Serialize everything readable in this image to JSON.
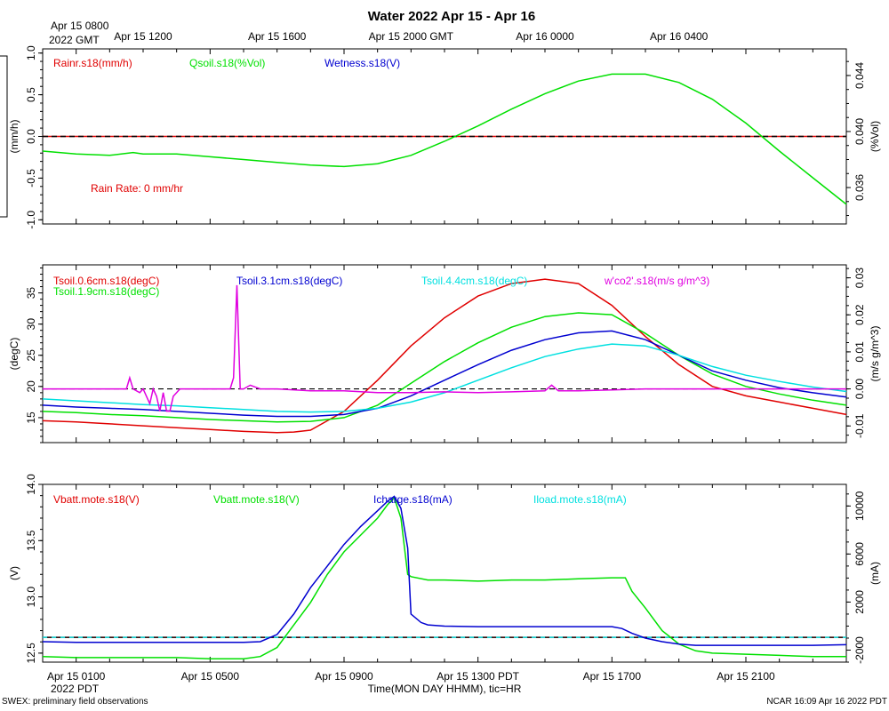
{
  "title": "Water 2022 Apr 15 - Apr 16",
  "top_axis": {
    "ticks": [
      {
        "x": 3,
        "label": "Apr 15 1200"
      },
      {
        "x": 7,
        "label": "Apr 15 1600"
      },
      {
        "x": 11,
        "label": "Apr 15 2000 GMT"
      },
      {
        "x": 15,
        "label": "Apr 16 0000"
      },
      {
        "x": 19,
        "label": "Apr 16 0400"
      }
    ],
    "start_label_1": "Apr 15 0800",
    "start_label_2": "2022 GMT"
  },
  "bottom_axis": {
    "ticks": [
      {
        "x": 1,
        "label": "Apr 15 0100"
      },
      {
        "x": 5,
        "label": "Apr 15 0500"
      },
      {
        "x": 9,
        "label": "Apr 15 0900"
      },
      {
        "x": 13,
        "label": "Apr 15 1300 PDT"
      },
      {
        "x": 17,
        "label": "Apr 15 1700"
      },
      {
        "x": 21,
        "label": "Apr 15 2100"
      }
    ],
    "year_label": "2022 PDT",
    "xlabel": "Time(MON DAY HHMM), tic=HR"
  },
  "footer": {
    "left": "SWEX: preliminary field observations",
    "right": "NCAR 16:09 Apr 16 2022 PDT"
  },
  "colors": {
    "red": "#e00000",
    "green": "#00e000",
    "blue": "#0000d0",
    "cyan": "#00e0e0",
    "magenta": "#e000e0"
  },
  "chart_data": [
    {
      "type": "line",
      "panel": "water",
      "ylabel_left": "(mm/h)",
      "ylabel_right": "(%Vol)",
      "ylim_left": [
        -1.05,
        1.05
      ],
      "yticks_left": [
        "1.0",
        "0.5",
        "0.0",
        "-0.5",
        "-1.0"
      ],
      "yticks_left_values": [
        1.0,
        0.5,
        0.0,
        -0.5,
        -1.0
      ],
      "ylim_right": [
        0.0334,
        0.0459
      ],
      "yticks_right": [
        "0.044",
        "0.040",
        "0.036"
      ],
      "yticks_right_values": [
        0.044,
        0.04,
        0.036
      ],
      "legend": [
        "Rainr.s18(mm/h)",
        "Qsoil.s18(%Vol)",
        "Wetness.s18(V)"
      ],
      "annotation": "Rain Rate: 0 mm/hr",
      "reference_line_left": 0.0,
      "series": [
        {
          "name": "Qsoil.s18(%Vol)",
          "axis": "right",
          "color": "green",
          "x": [
            0,
            1,
            2,
            2.7,
            3,
            4,
            5,
            6,
            7,
            8,
            9,
            10,
            11,
            12,
            13,
            14,
            15,
            16,
            17,
            18,
            19,
            20,
            21,
            22,
            23,
            24
          ],
          "values": [
            0.0386,
            0.0384,
            0.0383,
            0.0385,
            0.0384,
            0.0384,
            0.0382,
            0.038,
            0.0378,
            0.0376,
            0.0375,
            0.0377,
            0.0383,
            0.0393,
            0.0404,
            0.0416,
            0.0427,
            0.0436,
            0.0441,
            0.0441,
            0.0435,
            0.0423,
            0.0406,
            0.0386,
            0.0367,
            0.0348
          ]
        }
      ]
    },
    {
      "type": "line",
      "panel": "temperature",
      "ylabel_left": "(degC)",
      "ylabel_right": "(m/s g/m^3)",
      "ylim_left": [
        11,
        39.5
      ],
      "yticks_left": [
        "35",
        "30",
        "25",
        "20",
        "15"
      ],
      "yticks_left_values": [
        35,
        30,
        25,
        20,
        15
      ],
      "ylim_right": [
        -0.0145,
        0.0335
      ],
      "yticks_right": [
        "0.03",
        "0.02",
        "0.01",
        "0.00",
        "-0.01"
      ],
      "yticks_right_values": [
        0.03,
        0.02,
        0.01,
        0.0,
        -0.01
      ],
      "legend": [
        "Tsoil.0.6cm.s18(degC)",
        "Tsoil.1.9cm.s18(degC)",
        "Tsoil.3.1cm.s18(degC)",
        "Tsoil.4.4cm.s18(degC)",
        "w'co2'.s18(m/s g/m^3)"
      ],
      "reference_line_right": 0.0,
      "series": [
        {
          "name": "Tsoil.0.6cm.s18(degC)",
          "color": "red",
          "x": [
            0,
            1,
            2,
            3,
            4,
            5,
            6,
            7,
            7.5,
            8,
            9,
            10,
            11,
            12,
            13,
            14,
            15,
            16,
            17,
            18,
            19,
            20,
            21,
            22,
            23,
            24
          ],
          "values": [
            14.5,
            14.3,
            14.0,
            13.7,
            13.4,
            13.1,
            12.8,
            12.6,
            12.7,
            13.0,
            16.0,
            21.0,
            26.5,
            31.0,
            34.5,
            36.5,
            37.2,
            36.5,
            33.0,
            28.0,
            23.5,
            20.0,
            18.5,
            17.5,
            16.5,
            15.5
          ]
        },
        {
          "name": "Tsoil.1.9cm.s18(degC)",
          "color": "green",
          "x": [
            0,
            1,
            2,
            3,
            4,
            5,
            6,
            7,
            8,
            9,
            10,
            11,
            12,
            13,
            14,
            15,
            16,
            17,
            18,
            19,
            20,
            21,
            22,
            23,
            24
          ],
          "values": [
            16.0,
            15.8,
            15.5,
            15.3,
            15.0,
            14.7,
            14.5,
            14.3,
            14.4,
            15.0,
            17.0,
            20.5,
            24.0,
            27.0,
            29.5,
            31.2,
            31.8,
            31.5,
            28.5,
            25.0,
            22.0,
            20.0,
            18.8,
            17.8,
            17.0
          ]
        },
        {
          "name": "Tsoil.3.1cm.s18(degC)",
          "color": "blue",
          "x": [
            0,
            1,
            2,
            3,
            4,
            5,
            6,
            7,
            8,
            9,
            10,
            11,
            12,
            13,
            14,
            15,
            16,
            17,
            18,
            19,
            20,
            21,
            22,
            23,
            24
          ],
          "values": [
            17.0,
            16.7,
            16.5,
            16.3,
            16.0,
            15.7,
            15.4,
            15.2,
            15.2,
            15.5,
            16.5,
            18.5,
            21.0,
            23.5,
            25.8,
            27.5,
            28.6,
            28.9,
            27.5,
            25.0,
            22.5,
            21.0,
            19.8,
            19.0,
            18.3
          ]
        },
        {
          "name": "Tsoil.4.4cm.s18(degC)",
          "color": "cyan",
          "x": [
            0,
            1,
            2,
            3,
            4,
            5,
            6,
            7,
            8,
            9,
            10,
            11,
            12,
            13,
            14,
            15,
            16,
            17,
            18,
            19,
            20,
            21,
            22,
            23,
            24
          ],
          "values": [
            18.0,
            17.7,
            17.4,
            17.1,
            16.9,
            16.6,
            16.3,
            16.0,
            15.9,
            16.0,
            16.5,
            17.5,
            19.0,
            21.0,
            23.0,
            24.8,
            26.0,
            26.8,
            26.5,
            25.0,
            23.2,
            21.8,
            20.8,
            19.9,
            19.2
          ]
        },
        {
          "name": "w'co2'.s18(m/s g/m^3)",
          "color": "magenta",
          "x": [
            0,
            2.5,
            2.6,
            2.7,
            2.9,
            3.0,
            3.2,
            3.3,
            3.4,
            3.5,
            3.6,
            3.7,
            3.8,
            3.9,
            4.0,
            4.1,
            5.5,
            5.6,
            5.7,
            5.8,
            5.9,
            6.0,
            6.2,
            6.5,
            7,
            8,
            9,
            10,
            11,
            12,
            13,
            14,
            15,
            15.2,
            15.4,
            16,
            17,
            18,
            19,
            20,
            21,
            22,
            23,
            24
          ],
          "values": [
            0.0,
            0.0,
            0.003,
            0.0,
            -0.001,
            0.0,
            -0.004,
            0.0,
            -0.002,
            -0.006,
            -0.001,
            -0.006,
            -0.006,
            -0.002,
            -0.001,
            0.0,
            0.0,
            0.0,
            0.003,
            0.028,
            0.0,
            0.0,
            0.001,
            0.0,
            0.0,
            -0.0005,
            -0.0005,
            -0.001,
            -0.001,
            -0.0008,
            -0.001,
            -0.0008,
            -0.0005,
            0.001,
            -0.0005,
            -0.0005,
            -0.0003,
            0.0,
            0.0,
            0.0,
            0.0,
            0.0,
            0.0,
            0.0
          ]
        }
      ]
    },
    {
      "type": "line",
      "panel": "power",
      "ylabel_left": "(V)",
      "ylabel_right": "(mA)",
      "ylim_left": [
        12.42,
        14.0
      ],
      "yticks_left": [
        "14.0",
        "13.5",
        "13.0",
        "12.5"
      ],
      "yticks_left_values": [
        14.0,
        13.5,
        13.0,
        12.5
      ],
      "ylim_right": [
        -3000,
        11800
      ],
      "yticks_right": [
        "10000",
        "6000",
        "2000",
        "-2000"
      ],
      "yticks_right_values": [
        10000,
        6000,
        2000,
        -2000
      ],
      "legend": [
        "Vbatt.mote.s18(V)",
        "Vbatt.mote.s18(V)",
        "Icharge.s18(mA)",
        "Iload.mote.s18(mA)"
      ],
      "reference_line_left": 12.64,
      "series": [
        {
          "name": "Vbatt.mote.s18(V)",
          "color": "green",
          "x": [
            0,
            1,
            2,
            3,
            4,
            5,
            6,
            6.5,
            7,
            7.5,
            8,
            8.5,
            9,
            9.5,
            10,
            10.3,
            10.5,
            10.7,
            10.9,
            11.0,
            11.5,
            12,
            13,
            14,
            15,
            16,
            17,
            17.4,
            17.6,
            18,
            18.5,
            19,
            19.5,
            20,
            21,
            22,
            23,
            24
          ],
          "values": [
            12.47,
            12.46,
            12.46,
            12.46,
            12.46,
            12.45,
            12.45,
            12.47,
            12.55,
            12.75,
            12.95,
            13.2,
            13.4,
            13.55,
            13.7,
            13.82,
            13.88,
            13.7,
            13.2,
            13.18,
            13.15,
            13.15,
            13.14,
            13.15,
            13.15,
            13.16,
            13.17,
            13.17,
            13.05,
            12.9,
            12.7,
            12.58,
            12.52,
            12.5,
            12.49,
            12.48,
            12.47,
            12.47
          ]
        },
        {
          "name": "Icharge.s18(mA)",
          "color": "blue",
          "x": [
            0,
            1,
            2,
            3,
            4,
            5,
            6,
            6.5,
            7,
            7.5,
            8,
            8.5,
            9,
            9.5,
            10,
            10.3,
            10.5,
            10.7,
            10.9,
            11.0,
            11.3,
            11.5,
            12,
            13,
            14,
            15,
            16,
            17,
            17.3,
            17.6,
            18,
            18.5,
            19,
            19.5,
            20,
            21,
            22,
            23,
            24
          ],
          "values": [
            -1300,
            -1350,
            -1350,
            -1350,
            -1350,
            -1350,
            -1350,
            -1300,
            -700,
            1000,
            3200,
            5000,
            6800,
            8300,
            9600,
            10400,
            10800,
            9800,
            6500,
            1000,
            300,
            100,
            0,
            -50,
            -50,
            -50,
            -50,
            -50,
            -200,
            -600,
            -1000,
            -1300,
            -1500,
            -1600,
            -1600,
            -1600,
            -1600,
            -1600,
            -1550
          ]
        }
      ]
    }
  ]
}
